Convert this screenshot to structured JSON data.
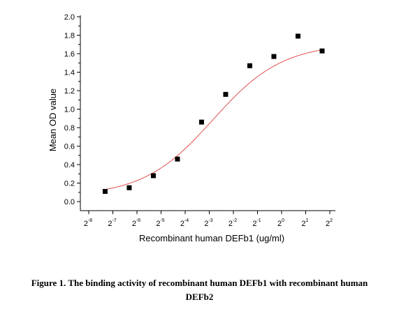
{
  "chart_data": {
    "type": "scatter",
    "xlabel": "Recombinant human DEFb1 (ug/ml)",
    "ylabel": "Mean OD value",
    "xscale": "log2",
    "xlim": [
      -8,
      2
    ],
    "ylim": [
      0,
      2.0
    ],
    "x_ticks": [
      {
        "base": "2",
        "exp": "-8"
      },
      {
        "base": "2",
        "exp": "-7"
      },
      {
        "base": "2",
        "exp": "-6"
      },
      {
        "base": "2",
        "exp": "-5"
      },
      {
        "base": "2",
        "exp": "-4"
      },
      {
        "base": "2",
        "exp": "-3"
      },
      {
        "base": "2",
        "exp": "-2"
      },
      {
        "base": "2",
        "exp": "-1"
      },
      {
        "base": "2",
        "exp": "0"
      },
      {
        "base": "2",
        "exp": "1"
      },
      {
        "base": "2",
        "exp": "2"
      }
    ],
    "y_ticks": [
      "0.0",
      "0.2",
      "0.4",
      "0.6",
      "0.8",
      "1.0",
      "1.2",
      "1.4",
      "1.6",
      "1.8",
      "2.0"
    ],
    "points": [
      {
        "x": -7.32,
        "y": 0.11
      },
      {
        "x": -6.32,
        "y": 0.15
      },
      {
        "x": -5.32,
        "y": 0.28
      },
      {
        "x": -4.32,
        "y": 0.46
      },
      {
        "x": -3.32,
        "y": 0.86
      },
      {
        "x": -2.32,
        "y": 1.16
      },
      {
        "x": -1.32,
        "y": 1.47
      },
      {
        "x": -0.32,
        "y": 1.57
      },
      {
        "x": 0.68,
        "y": 1.79
      },
      {
        "x": 1.68,
        "y": 1.63
      }
    ],
    "fit_curve": {
      "type": "4PL",
      "bottom": 0.06,
      "top": 1.71,
      "x50": -2.85,
      "slope": 1.0
    },
    "marker_color": "#000000",
    "fit_color": "#e05050",
    "grid": false,
    "legend": "none"
  },
  "caption": {
    "line1": "Figure 1. The binding activity of recombinant human DEFb1 with recombinant human",
    "line2": "DEFb2"
  }
}
